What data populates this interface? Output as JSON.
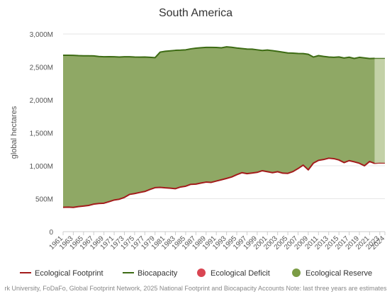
{
  "chart_data": {
    "type": "area",
    "title": "South America",
    "ylabel": "global hectares",
    "xlabel": "",
    "ylim": [
      0,
      3000
    ],
    "yticks": [
      0,
      500,
      1000,
      1500,
      2000,
      2500,
      3000
    ],
    "ytick_labels": [
      "0",
      "500M",
      "1,000M",
      "1,500M",
      "2,000M",
      "2,500M",
      "3,000M"
    ],
    "x_tick_labels": [
      "1961",
      "1963",
      "1965",
      "1967",
      "1969",
      "1971",
      "1973",
      "1975",
      "1977",
      "1979",
      "1981",
      "1983",
      "1985",
      "1987",
      "1989",
      "1991",
      "1993",
      "1995",
      "1997",
      "1999",
      "2001",
      "2003",
      "2005",
      "2007",
      "2009",
      "2011",
      "2013",
      "2015",
      "2017",
      "2019",
      "2021",
      "2023",
      "2024"
    ],
    "estimate_from_year": 2022,
    "years": [
      1961,
      1962,
      1963,
      1964,
      1965,
      1966,
      1967,
      1968,
      1969,
      1970,
      1971,
      1972,
      1973,
      1974,
      1975,
      1976,
      1977,
      1978,
      1979,
      1980,
      1981,
      1982,
      1983,
      1984,
      1985,
      1986,
      1987,
      1988,
      1989,
      1990,
      1991,
      1992,
      1993,
      1994,
      1995,
      1996,
      1997,
      1998,
      1999,
      2000,
      2001,
      2002,
      2003,
      2004,
      2005,
      2006,
      2007,
      2008,
      2009,
      2010,
      2011,
      2012,
      2013,
      2014,
      2015,
      2016,
      2017,
      2018,
      2019,
      2020,
      2021,
      2022,
      2023,
      2024
    ],
    "series": [
      {
        "name": "Ecological Footprint",
        "color": "#a31b1b",
        "values": [
          370,
          372,
          368,
          380,
          388,
          398,
          418,
          428,
          432,
          455,
          480,
          492,
          520,
          565,
          578,
          595,
          610,
          640,
          668,
          672,
          665,
          660,
          652,
          678,
          690,
          718,
          722,
          738,
          752,
          748,
          768,
          788,
          808,
          830,
          865,
          895,
          880,
          890,
          900,
          925,
          910,
          895,
          910,
          888,
          885,
          912,
          958,
          1010,
          938,
          1040,
          1082,
          1095,
          1115,
          1108,
          1088,
          1048,
          1078,
          1060,
          1038,
          1000,
          1065,
          1035,
          1040,
          1038
        ]
      },
      {
        "name": "Biocapacity",
        "color": "#3d6b14",
        "values": [
          2678,
          2678,
          2676,
          2672,
          2670,
          2669,
          2668,
          2659,
          2655,
          2656,
          2654,
          2651,
          2655,
          2655,
          2651,
          2649,
          2650,
          2646,
          2641,
          2725,
          2738,
          2745,
          2752,
          2755,
          2760,
          2775,
          2785,
          2792,
          2797,
          2797,
          2795,
          2790,
          2805,
          2798,
          2788,
          2780,
          2772,
          2770,
          2760,
          2750,
          2757,
          2747,
          2737,
          2724,
          2712,
          2710,
          2705,
          2703,
          2692,
          2650,
          2672,
          2660,
          2650,
          2647,
          2652,
          2636,
          2648,
          2629,
          2646,
          2637,
          2628,
          2630,
          2630,
          2630
        ]
      }
    ],
    "legend": [
      {
        "label": "Ecological Footprint",
        "kind": "line",
        "color": "#a31b1b"
      },
      {
        "label": "Biocapacity",
        "kind": "line",
        "color": "#3d6b14"
      },
      {
        "label": "Ecological Deficit",
        "kind": "circle",
        "color": "#d94552"
      },
      {
        "label": "Ecological Reserve",
        "kind": "circle",
        "color": "#7b9c45"
      }
    ],
    "reserve_color": "#8fa865",
    "reserve_estimate_color": "#c3d1a7",
    "legend_placement": "bottom",
    "grid": "horizontal"
  },
  "credits": "rk University, FoDaFo, Global Footprint Network, 2025 National Footprint and Biocapacity Accounts Note: last three years are estimates"
}
